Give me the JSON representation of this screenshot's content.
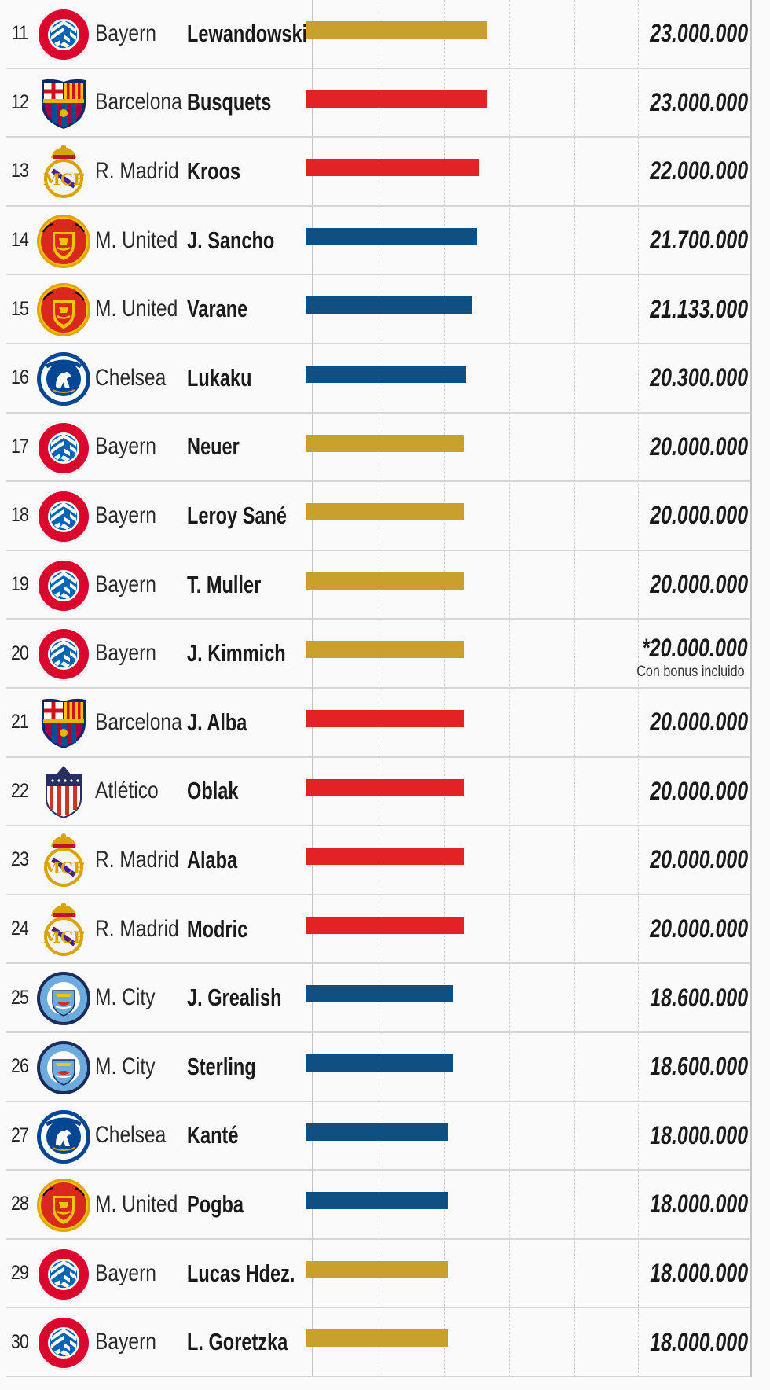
{
  "colors": {
    "Bayern": "#c9a02c",
    "Barcelona": "#e32323",
    "R. Madrid": "#e32323",
    "Atlético": "#e32323",
    "M. United": "#0f4f82",
    "Chelsea": "#0f4f82",
    "M. City": "#0f4f82"
  },
  "chart_data": {
    "type": "bar",
    "orientation": "horizontal",
    "xlim": [
      0,
      55000000
    ],
    "rows": [
      {
        "rank": "11",
        "club": "Bayern",
        "player": "Lewandowski",
        "value": 23000000,
        "label": "23.000.000"
      },
      {
        "rank": "12",
        "club": "Barcelona",
        "player": "Busquets",
        "value": 23000000,
        "label": "23.000.000"
      },
      {
        "rank": "13",
        "club": "R. Madrid",
        "player": "Kroos",
        "value": 22000000,
        "label": "22.000.000"
      },
      {
        "rank": "14",
        "club": "M. United",
        "player": "J. Sancho",
        "value": 21700000,
        "label": "21.700.000"
      },
      {
        "rank": "15",
        "club": "M. United",
        "player": "Varane",
        "value": 21133000,
        "label": "21.133.000"
      },
      {
        "rank": "16",
        "club": "Chelsea",
        "player": "Lukaku",
        "value": 20300000,
        "label": "20.300.000"
      },
      {
        "rank": "17",
        "club": "Bayern",
        "player": "Neuer",
        "value": 20000000,
        "label": "20.000.000"
      },
      {
        "rank": "18",
        "club": "Bayern",
        "player": "Leroy Sané",
        "value": 20000000,
        "label": "20.000.000"
      },
      {
        "rank": "19",
        "club": "Bayern",
        "player": "T. Muller",
        "value": 20000000,
        "label": "20.000.000"
      },
      {
        "rank": "20",
        "club": "Bayern",
        "player": "J. Kimmich",
        "value": 20000000,
        "label": "*20.000.000",
        "note": "Con bonus incluido"
      },
      {
        "rank": "21",
        "club": "Barcelona",
        "player": "J. Alba",
        "value": 20000000,
        "label": "20.000.000"
      },
      {
        "rank": "22",
        "club": "Atlético",
        "player": "Oblak",
        "value": 20000000,
        "label": "20.000.000"
      },
      {
        "rank": "23",
        "club": "R. Madrid",
        "player": "Alaba",
        "value": 20000000,
        "label": "20.000.000"
      },
      {
        "rank": "24",
        "club": "R. Madrid",
        "player": "Modric",
        "value": 20000000,
        "label": "20.000.000"
      },
      {
        "rank": "25",
        "club": "M. City",
        "player": "J. Grealish",
        "value": 18600000,
        "label": "18.600.000"
      },
      {
        "rank": "26",
        "club": "M. City",
        "player": "Sterling",
        "value": 18600000,
        "label": "18.600.000"
      },
      {
        "rank": "27",
        "club": "Chelsea",
        "player": "Kanté",
        "value": 18000000,
        "label": "18.000.000"
      },
      {
        "rank": "28",
        "club": "M. United",
        "player": "Pogba",
        "value": 18000000,
        "label": "18.000.000"
      },
      {
        "rank": "29",
        "club": "Bayern",
        "player": "Lucas Hdez.",
        "value": 18000000,
        "label": "18.000.000"
      },
      {
        "rank": "30",
        "club": "Bayern",
        "player": "L. Goretzka",
        "value": 18000000,
        "label": "18.000.000"
      }
    ]
  },
  "crests": {
    "Bayern": "bayern-crest-icon",
    "Barcelona": "barcelona-crest-icon",
    "R. Madrid": "real-madrid-crest-icon",
    "M. United": "manchester-united-crest-icon",
    "Chelsea": "chelsea-crest-icon",
    "Atlético": "atletico-crest-icon",
    "M. City": "manchester-city-crest-icon"
  }
}
